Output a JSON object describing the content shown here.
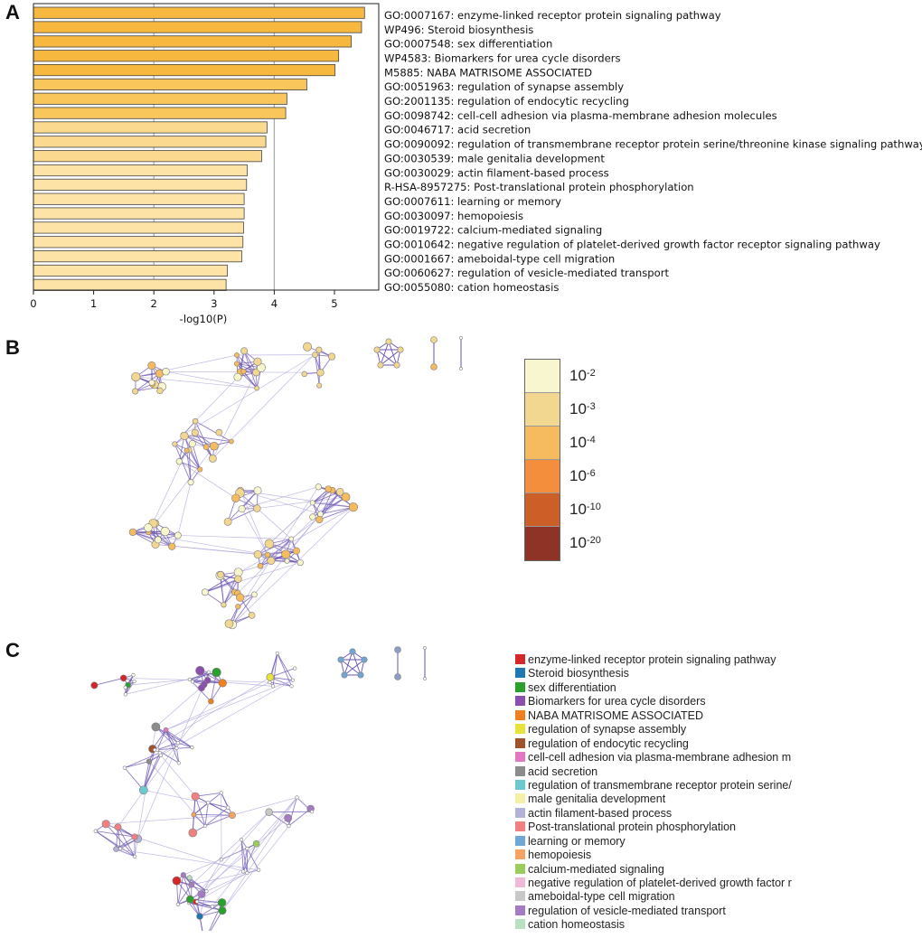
{
  "panels": {
    "a": "A",
    "b": "B",
    "c": "C"
  },
  "chart_data": {
    "type": "bar",
    "orientation": "horizontal",
    "xlabel": "-log10(P)",
    "xlim": [
      0,
      5.75
    ],
    "xticks": [
      "0",
      "1",
      "2",
      "3",
      "4",
      "5"
    ],
    "gridlines_at": [
      2,
      4
    ],
    "categories": [
      "GO:0007167: enzyme-linked receptor protein signaling pathway",
      "WP496: Steroid biosynthesis",
      "GO:0007548: sex differentiation",
      "WP4583: Biomarkers for urea cycle disorders",
      "M5885: NABA MATRISOME ASSOCIATED",
      "GO:0051963: regulation of synapse assembly",
      "GO:2001135: regulation of endocytic recycling",
      "GO:0098742: cell-cell adhesion via plasma-membrane adhesion molecules",
      "GO:0046717: acid secretion",
      "GO:0090092: regulation of transmembrane receptor protein serine/threonine kinase signaling pathway",
      "GO:0030539: male genitalia development",
      "GO:0030029: actin filament-based process",
      "R-HSA-8957275: Post-translational protein phosphorylation",
      "GO:0007611: learning or memory",
      "GO:0030097: hemopoiesis",
      "GO:0019722: calcium-mediated signaling",
      "GO:0010642: negative regulation of platelet-derived growth factor receptor signaling pathway",
      "GO:0001667: ameboidal-type cell migration",
      "GO:0060627: regulation of vesicle-mediated transport",
      "GO:0055080: cation homeostasis"
    ],
    "values": [
      5.5,
      5.45,
      5.28,
      5.07,
      5.01,
      4.54,
      4.21,
      4.19,
      3.88,
      3.86,
      3.79,
      3.55,
      3.54,
      3.5,
      3.5,
      3.49,
      3.48,
      3.46,
      3.22,
      3.2
    ],
    "bar_colors": [
      "#f7b840",
      "#f7b840",
      "#f7b840",
      "#f7b840",
      "#f7b840",
      "#f9c65c",
      "#f9c65c",
      "#f9c65c",
      "#fbd98f",
      "#fbd98f",
      "#fbd98f",
      "#fde4a6",
      "#fde4a6",
      "#fde4a6",
      "#fde4a6",
      "#fde4a6",
      "#fde4a6",
      "#fde4a6",
      "#fde4a6",
      "#fde4a6"
    ]
  },
  "pvalue_scale": {
    "labels": [
      {
        "base": "10",
        "exp": "-2"
      },
      {
        "base": "10",
        "exp": "-3"
      },
      {
        "base": "10",
        "exp": "-4"
      },
      {
        "base": "10",
        "exp": "-6"
      },
      {
        "base": "10",
        "exp": "-10"
      },
      {
        "base": "10",
        "exp": "-20"
      }
    ],
    "colors": [
      "#f7f6cf",
      "#f2d791",
      "#f5bb5e",
      "#f48e3c",
      "#cc5f27",
      "#8e3325"
    ]
  },
  "cluster_legend": [
    {
      "label": "enzyme-linked receptor protein signaling pathway",
      "color": "#d62728"
    },
    {
      "label": "Steroid biosynthesis",
      "color": "#1f77b4"
    },
    {
      "label": "sex differentiation",
      "color": "#2ca02c"
    },
    {
      "label": "Biomarkers for urea cycle disorders",
      "color": "#8c4fb0"
    },
    {
      "label": "NABA MATRISOME ASSOCIATED",
      "color": "#f07f1d"
    },
    {
      "label": "regulation of synapse assembly",
      "color": "#e6e33b"
    },
    {
      "label": "regulation of endocytic recycling",
      "color": "#a0522d"
    },
    {
      "label": "cell-cell adhesion via plasma-membrane adhesion m",
      "color": "#e377c2"
    },
    {
      "label": "acid secretion",
      "color": "#8c8c8c"
    },
    {
      "label": "regulation of transmembrane receptor protein serine/",
      "color": "#6cc9cf"
    },
    {
      "label": "male genitalia development",
      "color": "#f4f0a8"
    },
    {
      "label": "actin filament-based process",
      "color": "#b3b3d9"
    },
    {
      "label": "Post-translational protein phosphorylation",
      "color": "#f28080"
    },
    {
      "label": "learning or memory",
      "color": "#6fa8d6"
    },
    {
      "label": "hemopoiesis",
      "color": "#f4a460"
    },
    {
      "label": "calcium-mediated signaling",
      "color": "#9acd5a"
    },
    {
      "label": "negative regulation of platelet-derived growth factor r",
      "color": "#f2b8d8"
    },
    {
      "label": "ameboidal-type cell migration",
      "color": "#c8c8c8"
    },
    {
      "label": "regulation of vesicle-mediated transport",
      "color": "#a57cc4"
    },
    {
      "label": "cation homeostasis",
      "color": "#b9e0c0"
    }
  ],
  "colors": {
    "edge": "#6a52b3",
    "edge_light": "#b0a6dc",
    "node_stroke": "#7d7d7d",
    "bar_stroke": "#444444",
    "axis": "#222222",
    "grid": "#aaaaaa"
  }
}
